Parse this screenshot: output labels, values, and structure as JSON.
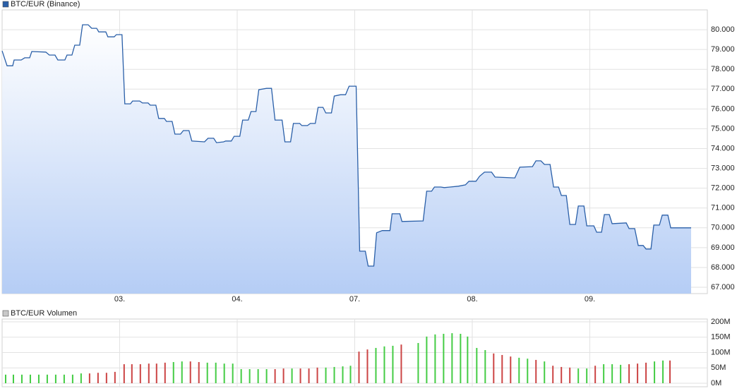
{
  "chart_data": [
    {
      "type": "area",
      "x": [
        0,
        0.042,
        0.09,
        0.102,
        0.162,
        0.192,
        0.234,
        0.252,
        0.372,
        0.402,
        0.45,
        0.474,
        0.534,
        0.552,
        0.594,
        0.618,
        0.66,
        0.684,
        0.732,
        0.762,
        0.804,
        0.822,
        0.882,
        0.9,
        0.954,
        0.972,
        1.02,
        1.044,
        1.092,
        1.11,
        1.17,
        1.194,
        1.242,
        1.26,
        1.308,
        1.332,
        1.38,
        1.398,
        1.446,
        1.47,
        1.518,
        1.542,
        1.59,
        1.614,
        1.722,
        1.752,
        1.8,
        1.824,
        1.884,
        1.902,
        1.95,
        1.974,
        2.022,
        2.046,
        2.094,
        2.118,
        2.16,
        2.184,
        2.25,
        2.292,
        2.322,
        2.382,
        2.406,
        2.454,
        2.478,
        2.532,
        2.55,
        2.598,
        2.622,
        2.664,
        2.688,
        2.73,
        2.754,
        2.802,
        2.826,
        2.88,
        2.922,
        2.952,
        3.012,
        3.042,
        3.09,
        3.114,
        3.162,
        3.186,
        3.234,
        3.3,
        3.318,
        3.384,
        3.402,
        3.582,
        3.612,
        3.654,
        3.678,
        3.732,
        3.762,
        3.882,
        3.942,
        3.972,
        4.032,
        4.062,
        4.104,
        4.164,
        4.194,
        4.362,
        4.404,
        4.512,
        4.542,
        4.584,
        4.614,
        4.662,
        4.692,
        4.734,
        4.758,
        4.8,
        4.83,
        4.878,
        4.902,
        4.95,
        4.974,
        5.034,
        5.058,
        5.1,
        5.124,
        5.166,
        5.19,
        5.31,
        5.334,
        5.382,
        5.412,
        5.454,
        5.478,
        5.52,
        5.544,
        5.592,
        5.616,
        5.664,
        5.688,
        5.862
      ],
      "series": [
        {
          "name": "BTC/EUR (Binance)",
          "color": "#2a5fa8",
          "values": [
            78930,
            78180,
            78180,
            78470,
            78470,
            78580,
            78580,
            78900,
            78870,
            78720,
            78720,
            78470,
            78470,
            78720,
            78720,
            79220,
            79220,
            80250,
            80250,
            80070,
            80070,
            79890,
            79890,
            79640,
            79640,
            79750,
            79750,
            76260,
            76260,
            76400,
            76400,
            76300,
            76300,
            76190,
            76190,
            75520,
            75520,
            75370,
            75370,
            74730,
            74730,
            74910,
            74910,
            74380,
            74340,
            74520,
            74520,
            74300,
            74340,
            74380,
            74380,
            74620,
            74620,
            75440,
            75440,
            75870,
            75870,
            76970,
            77040,
            77040,
            75440,
            75440,
            74340,
            74340,
            75270,
            75270,
            75160,
            75160,
            75270,
            75270,
            76080,
            76080,
            75800,
            75800,
            76650,
            76720,
            76720,
            77150,
            77150,
            68820,
            68820,
            68070,
            68070,
            69750,
            69860,
            69860,
            70710,
            70710,
            70320,
            70350,
            71850,
            71850,
            72060,
            72060,
            72030,
            72100,
            72170,
            72350,
            72350,
            72600,
            72810,
            72810,
            72560,
            72520,
            73060,
            73090,
            73380,
            73380,
            73200,
            73200,
            72060,
            72060,
            71630,
            71630,
            70170,
            70170,
            71100,
            71100,
            70100,
            70100,
            69780,
            69780,
            70670,
            70670,
            70210,
            70250,
            69960,
            69960,
            69110,
            69110,
            68930,
            68930,
            70140,
            70140,
            70640,
            70640,
            70000,
            70000
          ]
        }
      ],
      "xlim": [
        0,
        6
      ],
      "xticks": [
        {
          "value": 1,
          "label": "03."
        },
        {
          "value": 2,
          "label": "04."
        },
        {
          "value": 3,
          "label": "07."
        },
        {
          "value": 4,
          "label": "08."
        },
        {
          "value": 5,
          "label": "09."
        }
      ],
      "ylim": [
        66680,
        81000
      ],
      "yticks": [
        {
          "value": 67000,
          "label": "67.000"
        },
        {
          "value": 68000,
          "label": "68.000"
        },
        {
          "value": 69000,
          "label": "69.000"
        },
        {
          "value": 70000,
          "label": "70.000"
        },
        {
          "value": 71000,
          "label": "71.000"
        },
        {
          "value": 72000,
          "label": "72.000"
        },
        {
          "value": 73000,
          "label": "73.000"
        },
        {
          "value": 74000,
          "label": "74.000"
        },
        {
          "value": 75000,
          "label": "75.000"
        },
        {
          "value": 76000,
          "label": "76.000"
        },
        {
          "value": 77000,
          "label": "77.000"
        },
        {
          "value": 78000,
          "label": "78.000"
        },
        {
          "value": 79000,
          "label": "79.000"
        },
        {
          "value": 80000,
          "label": "80.000"
        }
      ],
      "grid": true
    },
    {
      "type": "bar",
      "x": [
        0.03,
        0.096,
        0.168,
        0.24,
        0.312,
        0.384,
        0.456,
        0.528,
        0.6,
        0.672,
        0.744,
        0.816,
        0.888,
        0.96,
        1.038,
        1.104,
        1.176,
        1.248,
        1.314,
        1.386,
        1.458,
        1.53,
        1.602,
        1.674,
        1.746,
        1.818,
        1.89,
        1.962,
        2.034,
        2.106,
        2.178,
        2.25,
        2.322,
        2.394,
        2.466,
        2.538,
        2.61,
        2.682,
        2.754,
        2.826,
        2.898,
        2.964,
        3.036,
        3.108,
        3.18,
        3.252,
        3.324,
        3.396,
        3.54,
        3.612,
        3.684,
        3.756,
        3.828,
        3.9,
        3.96,
        4.038,
        4.11,
        4.182,
        4.254,
        4.326,
        4.398,
        4.47,
        4.542,
        4.614,
        4.686,
        4.758,
        4.83,
        4.902,
        4.974,
        5.046,
        5.118,
        5.19,
        5.262,
        5.334,
        5.406,
        5.478,
        5.55,
        5.622,
        5.682
      ],
      "series": [
        {
          "name": "BTC/EUR Volumen",
          "color": "#c8c8c8",
          "values": [
            28000000,
            28000000,
            28000000,
            28000000,
            28000000,
            28000000,
            28000000,
            28000000,
            28000000,
            32000000,
            32000000,
            34000000,
            34000000,
            37000000,
            62000000,
            62000000,
            62000000,
            64000000,
            64000000,
            67000000,
            69000000,
            71000000,
            71000000,
            69000000,
            67000000,
            67000000,
            64000000,
            64000000,
            46000000,
            46000000,
            46000000,
            46000000,
            46000000,
            48000000,
            48000000,
            48000000,
            48000000,
            51000000,
            51000000,
            53000000,
            55000000,
            57000000,
            103000000,
            110000000,
            115000000,
            120000000,
            122000000,
            126000000,
            131000000,
            152000000,
            159000000,
            161000000,
            163000000,
            161000000,
            152000000,
            115000000,
            108000000,
            97000000,
            92000000,
            87000000,
            83000000,
            80000000,
            76000000,
            71000000,
            57000000,
            53000000,
            51000000,
            48000000,
            48000000,
            57000000,
            62000000,
            62000000,
            60000000,
            62000000,
            64000000,
            67000000,
            71000000,
            74000000,
            74000000
          ],
          "colors": [
            "#44cc44",
            "#44cc44",
            "#44cc44",
            "#44cc44",
            "#44cc44",
            "#44cc44",
            "#44cc44",
            "#44cc44",
            "#44cc44",
            "#44cc44",
            "#cc4444",
            "#cc4444",
            "#cc4444",
            "#cc4444",
            "#cc4444",
            "#cc4444",
            "#cc4444",
            "#cc4444",
            "#cc4444",
            "#cc4444",
            "#44cc44",
            "#44cc44",
            "#cc4444",
            "#cc4444",
            "#44cc44",
            "#44cc44",
            "#44cc44",
            "#44cc44",
            "#44cc44",
            "#44cc44",
            "#44cc44",
            "#44cc44",
            "#cc4444",
            "#cc4444",
            "#44cc44",
            "#cc4444",
            "#cc4444",
            "#cc4444",
            "#44cc44",
            "#44cc44",
            "#44cc44",
            "#44cc44",
            "#cc4444",
            "#cc4444",
            "#44cc44",
            "#44cc44",
            "#44cc44",
            "#cc4444",
            "#44cc44",
            "#44cc44",
            "#44cc44",
            "#44cc44",
            "#44cc44",
            "#44cc44",
            "#44cc44",
            "#44cc44",
            "#44cc44",
            "#cc4444",
            "#cc4444",
            "#cc4444",
            "#44cc44",
            "#44cc44",
            "#cc4444",
            "#44cc44",
            "#cc4444",
            "#cc4444",
            "#cc4444",
            "#44cc44",
            "#44cc44",
            "#cc4444",
            "#44cc44",
            "#44cc44",
            "#44cc44",
            "#cc4444",
            "#cc4444",
            "#cc4444",
            "#44cc44",
            "#44cc44",
            "#cc4444"
          ]
        }
      ],
      "xlim": [
        0,
        6
      ],
      "ylim": [
        0,
        200000000
      ],
      "yticks": [
        {
          "value": 0,
          "label": "0M"
        },
        {
          "value": 50000000,
          "label": "50M"
        },
        {
          "value": 100000000,
          "label": "100M"
        },
        {
          "value": 150000000,
          "label": "150M"
        },
        {
          "value": 200000000,
          "label": "200M"
        }
      ],
      "grid": true
    }
  ]
}
